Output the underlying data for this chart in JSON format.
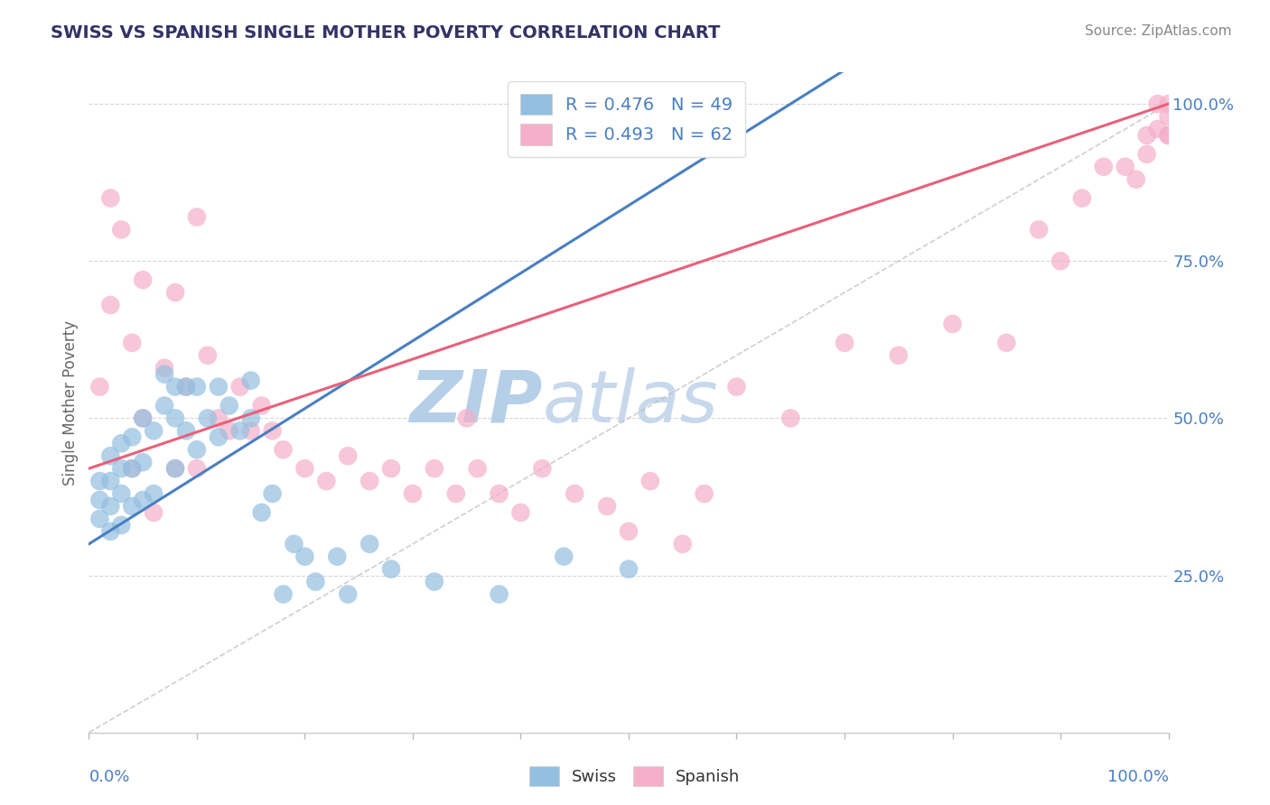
{
  "title": "SWISS VS SPANISH SINGLE MOTHER POVERTY CORRELATION CHART",
  "source": "Source: ZipAtlas.com",
  "ylabel": "Single Mother Poverty",
  "swiss_R": 0.476,
  "swiss_N": 49,
  "spanish_R": 0.493,
  "spanish_N": 62,
  "swiss_color": "#93bfe0",
  "spanish_color": "#f5afc8",
  "swiss_line_color": "#4a7fc1",
  "spanish_line_color": "#e8607a",
  "ref_line_color": "#bbbbbb",
  "watermark_zip_color": "#b5cfe8",
  "watermark_atlas_color": "#c8d8ec",
  "ytick_labels": [
    "25.0%",
    "50.0%",
    "75.0%",
    "100.0%"
  ],
  "ytick_values": [
    0.25,
    0.5,
    0.75,
    1.0
  ],
  "grid_color": "#cccccc",
  "background_color": "#ffffff",
  "title_color": "#333366",
  "source_color": "#888888",
  "axis_label_color": "#4a7fc1",
  "swiss_x": [
    0.01,
    0.01,
    0.01,
    0.02,
    0.02,
    0.02,
    0.02,
    0.03,
    0.03,
    0.03,
    0.03,
    0.04,
    0.04,
    0.04,
    0.05,
    0.05,
    0.05,
    0.06,
    0.06,
    0.07,
    0.07,
    0.08,
    0.08,
    0.08,
    0.09,
    0.09,
    0.1,
    0.1,
    0.11,
    0.12,
    0.12,
    0.13,
    0.14,
    0.15,
    0.15,
    0.16,
    0.17,
    0.18,
    0.19,
    0.2,
    0.21,
    0.23,
    0.24,
    0.26,
    0.28,
    0.32,
    0.38,
    0.44,
    0.5
  ],
  "swiss_y": [
    0.34,
    0.37,
    0.4,
    0.32,
    0.36,
    0.4,
    0.44,
    0.33,
    0.38,
    0.42,
    0.46,
    0.36,
    0.42,
    0.47,
    0.37,
    0.43,
    0.5,
    0.38,
    0.48,
    0.52,
    0.57,
    0.42,
    0.5,
    0.55,
    0.48,
    0.55,
    0.45,
    0.55,
    0.5,
    0.47,
    0.55,
    0.52,
    0.48,
    0.5,
    0.56,
    0.35,
    0.38,
    0.22,
    0.3,
    0.28,
    0.24,
    0.28,
    0.22,
    0.3,
    0.26,
    0.24,
    0.22,
    0.28,
    0.26
  ],
  "spanish_x": [
    0.01,
    0.02,
    0.03,
    0.04,
    0.04,
    0.05,
    0.05,
    0.06,
    0.07,
    0.08,
    0.08,
    0.09,
    0.1,
    0.11,
    0.12,
    0.13,
    0.14,
    0.15,
    0.16,
    0.17,
    0.18,
    0.2,
    0.22,
    0.24,
    0.26,
    0.28,
    0.3,
    0.32,
    0.34,
    0.35,
    0.36,
    0.38,
    0.4,
    0.42,
    0.45,
    0.48,
    0.5,
    0.52,
    0.55,
    0.57,
    0.6,
    0.65,
    0.7,
    0.75,
    0.8,
    0.85,
    0.88,
    0.9,
    0.92,
    0.94,
    0.96,
    0.97,
    0.98,
    0.98,
    0.99,
    0.99,
    1.0,
    1.0,
    1.0,
    1.0,
    0.02,
    0.1
  ],
  "spanish_y": [
    0.55,
    0.68,
    0.8,
    0.42,
    0.62,
    0.5,
    0.72,
    0.35,
    0.58,
    0.42,
    0.7,
    0.55,
    0.42,
    0.6,
    0.5,
    0.48,
    0.55,
    0.48,
    0.52,
    0.48,
    0.45,
    0.42,
    0.4,
    0.44,
    0.4,
    0.42,
    0.38,
    0.42,
    0.38,
    0.5,
    0.42,
    0.38,
    0.35,
    0.42,
    0.38,
    0.36,
    0.32,
    0.4,
    0.3,
    0.38,
    0.55,
    0.5,
    0.62,
    0.6,
    0.65,
    0.62,
    0.8,
    0.75,
    0.85,
    0.9,
    0.9,
    0.88,
    0.92,
    0.95,
    0.96,
    1.0,
    0.95,
    0.98,
    0.95,
    1.0,
    0.85,
    0.82
  ]
}
